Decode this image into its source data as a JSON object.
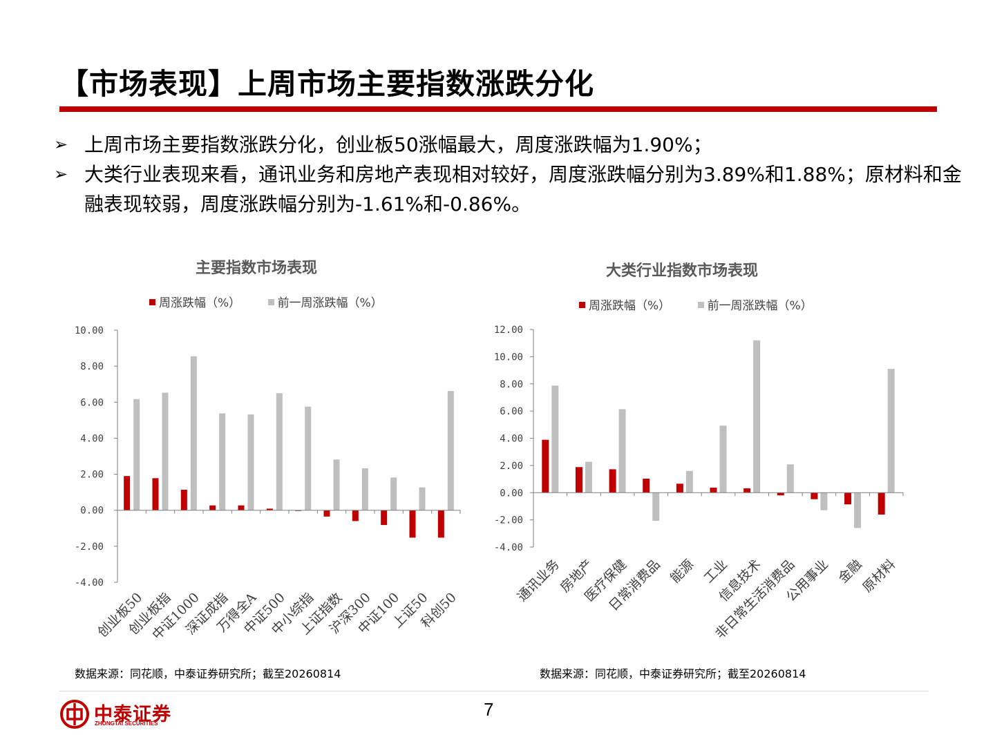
{
  "page": {
    "title": "【市场表现】上周市场主要指数涨跌分化",
    "bullets": [
      "上周市场主要指数涨跌分化，创业板50涨幅最大，周度涨跌幅为1.90%；",
      "大类行业表现来看，通讯业务和房地产表现相对较好，周度涨跌幅分别为3.89%和1.88%；原材料和金融表现较弱，周度涨跌幅分别为-1.61%和-0.86%。"
    ],
    "bullet_marker": "➢",
    "page_number": "7",
    "logo": {
      "cn": "中泰证券",
      "en": "ZHONGTAI SECURITIES"
    }
  },
  "colors": {
    "current": "#c00000",
    "previous": "#bfbfbf",
    "accent": "#c00000",
    "axis": "#7f7f7f",
    "tick_text": "#404040"
  },
  "chart_data": [
    {
      "type": "bar",
      "title": "主要指数市场表现",
      "source": "数据来源：同花顺，中泰证券研究所；截至20260814",
      "categories": [
        "创业板50",
        "创业板指",
        "中证1000",
        "深证成指",
        "万得全A",
        "中证500",
        "中小综指",
        "上证指数",
        "沪深300",
        "中证100",
        "上证50",
        "科创50"
      ],
      "series": [
        {
          "name": "周涨跌幅（%）",
          "values": [
            1.9,
            1.78,
            1.14,
            0.27,
            0.27,
            0.09,
            -0.04,
            -0.35,
            -0.6,
            -0.82,
            -1.52,
            -1.52
          ]
        },
        {
          "name": "前一周涨跌幅（%）",
          "values": [
            6.17,
            6.53,
            8.55,
            5.38,
            5.32,
            6.5,
            5.75,
            2.82,
            2.33,
            1.82,
            1.27,
            6.62
          ]
        }
      ],
      "ylim": [
        -4,
        10
      ],
      "yticks": [
        -4,
        -2,
        0,
        2,
        4,
        6,
        8,
        10
      ],
      "ytick_labels": [
        "-4.00",
        "-2.00",
        "0.00",
        "2.00",
        "4.00",
        "6.00",
        "8.00",
        "10.00"
      ],
      "legend": "top",
      "grid": false
    },
    {
      "type": "bar",
      "title": "大类行业指数市场表现",
      "source": "数据来源：同花顺，中泰证券研究所；截至20260814",
      "categories": [
        "通讯业务",
        "房地产",
        "医疗保健",
        "日常消费品",
        "能源",
        "工业",
        "信息技术",
        "非日常生活消费品",
        "公用事业",
        "金融",
        "原材料"
      ],
      "series": [
        {
          "name": "周涨跌幅（%）",
          "values": [
            3.89,
            1.88,
            1.72,
            1.03,
            0.66,
            0.37,
            0.32,
            -0.2,
            -0.48,
            -0.86,
            -1.61
          ]
        },
        {
          "name": "前一周涨跌幅（%）",
          "values": [
            7.87,
            2.27,
            6.14,
            -2.07,
            1.6,
            4.93,
            11.2,
            2.08,
            -1.29,
            -2.6,
            9.1
          ]
        }
      ],
      "ylim": [
        -4,
        12
      ],
      "yticks": [
        -4,
        -2,
        0,
        2,
        4,
        6,
        8,
        10,
        12
      ],
      "ytick_labels": [
        "-4.00",
        "-2.00",
        "0.00",
        "2.00",
        "4.00",
        "6.00",
        "8.00",
        "10.00",
        "12.00"
      ],
      "legend": "top",
      "grid": false
    }
  ]
}
